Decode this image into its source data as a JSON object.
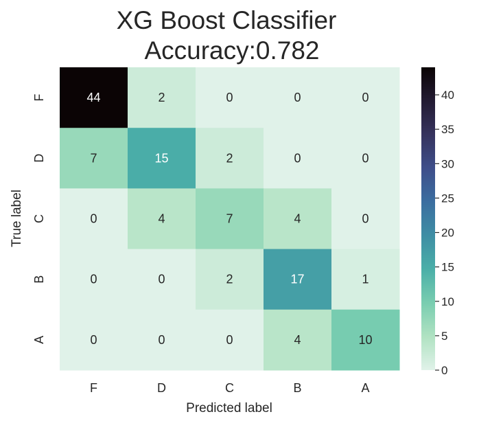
{
  "chart_data": {
    "type": "heatmap",
    "title": "XG Boost Classifier",
    "subtitle": "Accuracy:0.782",
    "xlabel": "Predicted label",
    "ylabel": "True label",
    "x_categories": [
      "F",
      "D",
      "C",
      "B",
      "A"
    ],
    "y_categories": [
      "F",
      "D",
      "C",
      "B",
      "A"
    ],
    "values": [
      [
        44,
        2,
        0,
        0,
        0
      ],
      [
        7,
        15,
        2,
        0,
        0
      ],
      [
        0,
        4,
        7,
        4,
        0
      ],
      [
        0,
        0,
        2,
        17,
        1
      ],
      [
        0,
        0,
        0,
        4,
        10
      ]
    ],
    "colorbar": {
      "min": 0,
      "max": 44,
      "ticks": [
        0,
        5,
        10,
        15,
        20,
        25,
        30,
        35,
        40
      ]
    },
    "colormap": "mako_r",
    "colormap_stops": [
      "#e0f2e9",
      "#b0e2c2",
      "#79cdb0",
      "#4bafa8",
      "#3e8ea4",
      "#3b6ea0",
      "#3e4e8a",
      "#36335e",
      "#231b33",
      "#0b0405"
    ]
  }
}
